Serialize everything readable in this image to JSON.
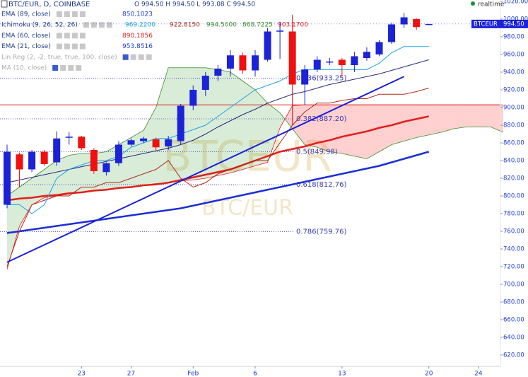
{
  "chart_data": {
    "type": "candlestick",
    "title": "BTC/EUR, D, COINBASE",
    "ohlc_header": "O 994.50 H 994.50 L 993.08 C 994.50",
    "realtime": "realtime",
    "watermark": [
      "BTCEUR",
      "BTC/EUR"
    ],
    "price_tag": {
      "symbol": "BTCEUR",
      "price": "994.50",
      "value": 994.5
    },
    "indicators": [
      {
        "name": "EMA (89, close)",
        "values": [
          "850.1023"
        ],
        "colors": [
          "#1f3cd6"
        ]
      },
      {
        "name": "Ichimoku (9, 26, 52, 26)",
        "values": [
          "969.2200",
          "922.8150",
          "994.5000",
          "868.7225",
          "903.1700"
        ],
        "colors": [
          "#1aa3e8",
          "#b22a1c",
          "#3a8f2a",
          "#3a8f2a",
          "#e0201c"
        ]
      },
      {
        "name": "EMA (60, close)",
        "values": [
          "890.1856"
        ],
        "colors": [
          "#e0201c"
        ]
      },
      {
        "name": "EMA (21, close)",
        "values": [
          "953.8516"
        ],
        "colors": [
          "#1f3cd6"
        ]
      },
      {
        "name": "Lin Reg (2, -2, true, true, 100, close)",
        "values": [],
        "colors": []
      },
      {
        "name": "MA (10, close)",
        "values": [],
        "colors": []
      }
    ],
    "categories": [
      null,
      null,
      null,
      null,
      null,
      null,
      "23",
      null,
      null,
      null,
      "27",
      null,
      null,
      null,
      null,
      "Feb",
      null,
      null,
      null,
      null,
      "6",
      null,
      null,
      null,
      null,
      null,
      null,
      "13",
      null,
      null,
      null,
      null,
      null,
      null,
      "20",
      null,
      null,
      null,
      "24",
      null,
      null
    ],
    "open": [
      790,
      847,
      830,
      850,
      838,
      866,
      867,
      852,
      827,
      837,
      858,
      862,
      864,
      856,
      862,
      902,
      920,
      936,
      944,
      959,
      942,
      954,
      986,
      986,
      926,
      943,
      952,
      954,
      948,
      956,
      960,
      974,
      994,
      1000,
      994.5,
      null,
      null,
      null,
      null,
      null,
      null
    ],
    "high": [
      858,
      849,
      852,
      852,
      873,
      872,
      868,
      854,
      838,
      862,
      865,
      867,
      866,
      868,
      904,
      925,
      940,
      948,
      965,
      962,
      965,
      990,
      997,
      1005,
      948,
      958,
      956,
      956,
      963,
      968,
      976,
      996,
      1007,
      1001,
      994.5,
      null,
      null,
      null,
      null,
      null,
      null
    ],
    "low": [
      786,
      810,
      827,
      834,
      834,
      858,
      852,
      825,
      823,
      834,
      856,
      860,
      851,
      852,
      858,
      897,
      913,
      930,
      935,
      938,
      935,
      952,
      955,
      880,
      903,
      940,
      948,
      935,
      940,
      953,
      958,
      972,
      990,
      988,
      993.08,
      null,
      null,
      null,
      null,
      null,
      null
    ],
    "close": [
      850,
      830,
      850,
      836,
      865,
      867,
      854,
      828,
      837,
      858,
      863,
      865,
      855,
      864,
      902,
      920,
      936,
      944,
      959,
      942,
      959,
      986,
      987,
      926,
      943,
      954,
      952,
      948,
      958,
      963,
      974,
      994,
      1002,
      991,
      994.5,
      null,
      null,
      null,
      null,
      null,
      null
    ],
    "up_color": "#1b22d8",
    "down_color": "#f01010",
    "overlays": [
      {
        "name": "EMA (89, close)",
        "color": "#1b2fd6",
        "width": 2.5,
        "values": [
          758,
          760,
          762,
          764,
          766,
          768,
          770,
          772,
          774,
          776,
          778,
          780,
          782,
          784,
          786,
          789,
          792,
          795,
          798,
          801,
          804,
          807,
          810,
          813,
          816,
          819,
          822,
          825,
          828,
          831,
          834,
          838,
          842,
          846,
          850,
          null,
          null,
          null,
          null,
          null,
          null
        ]
      },
      {
        "name": "EMA (60, close)",
        "color": "#e0201c",
        "width": 2.5,
        "values": [
          795,
          797,
          798,
          800,
          801,
          803,
          804,
          806,
          807,
          809,
          810,
          812,
          813,
          815,
          818,
          821,
          824,
          827,
          830,
          835,
          840,
          845,
          850,
          853,
          856,
          860,
          863,
          867,
          870,
          873,
          877,
          880,
          884,
          887,
          890,
          null,
          null,
          null,
          null,
          null,
          null
        ]
      },
      {
        "name": "EMA (21, close)",
        "color": "#2a2a7a",
        "width": 1,
        "values": [
          815,
          818,
          821,
          824,
          827,
          830,
          833,
          836,
          839,
          842,
          845,
          848,
          851,
          854,
          858,
          863,
          870,
          878,
          885,
          892,
          898,
          905,
          910,
          915,
          918,
          922,
          926,
          929,
          932,
          935,
          938,
          942,
          946,
          950,
          954,
          null,
          null,
          null,
          null,
          null,
          null
        ]
      },
      {
        "name": "Conversion",
        "color": "#1aa3e8",
        "width": 1,
        "values": [
          790,
          790,
          780,
          790,
          820,
          830,
          835,
          840,
          840,
          845,
          855,
          860,
          865,
          865,
          870,
          875,
          880,
          890,
          900,
          910,
          920,
          925,
          930,
          938,
          943,
          943,
          943,
          943,
          943,
          943,
          950,
          962,
          969,
          969,
          969,
          null,
          null,
          null,
          null,
          null,
          null
        ]
      },
      {
        "name": "Base",
        "color": "#b22a1c",
        "width": 1,
        "values": [
          720,
          760,
          790,
          795,
          800,
          800,
          810,
          810,
          815,
          815,
          820,
          825,
          830,
          840,
          820,
          810,
          815,
          825,
          830,
          835,
          840,
          840,
          860,
          880,
          895,
          905,
          905,
          908,
          910,
          910,
          915,
          915,
          915,
          918,
          922,
          null,
          null,
          null,
          null,
          null,
          null
        ]
      }
    ],
    "cloud": {
      "span_a": [
        800,
        810,
        820,
        830,
        840,
        846,
        848,
        848,
        850,
        858,
        866,
        874,
        900,
        945,
        945,
        945,
        945,
        943,
        940,
        930,
        920,
        905,
        894,
        876,
        858,
        855,
        850,
        848,
        845,
        842,
        850,
        858,
        862,
        866,
        869,
        872,
        876,
        878,
        878,
        878,
        872
      ],
      "span_b": [
        717,
        766,
        790,
        798,
        800,
        802,
        804,
        806,
        807,
        809,
        810,
        812,
        814,
        815,
        817,
        818,
        820,
        823,
        826,
        830,
        834,
        838,
        877,
        902,
        903,
        903,
        903,
        903,
        903,
        903,
        903,
        903,
        903,
        903,
        903,
        903,
        903,
        903,
        903,
        903,
        903
      ],
      "up_fill": "rgba(60,160,60,0.2)",
      "down_fill": "rgba(255,120,120,0.35)",
      "line_color": "#3a8f2a"
    },
    "trend_line": {
      "start": [
        0,
        725
      ],
      "end": [
        32,
        935
      ],
      "color": "#1b22d8"
    },
    "hline": {
      "value": 903,
      "color": "#e0201c"
    },
    "fib_levels": [
      {
        "value": 933.25,
        "label": "0.236(933.25)"
      },
      {
        "value": 887.2,
        "label": "0.382(887.20)"
      },
      {
        "value": 849.98,
        "label": "0.5(849.98)"
      },
      {
        "value": 812.76,
        "label": "0.618(812.76)"
      },
      {
        "value": 759.76,
        "label": "0.786(759.76)"
      }
    ],
    "fib_color": "#3a3ab0",
    "ylim": [
      605.6,
      1021.6
    ],
    "yticks": [
      {
        "value": 620,
        "label": "620.00"
      },
      {
        "value": 640,
        "label": "640.00"
      },
      {
        "value": 660,
        "label": "660.00"
      },
      {
        "value": 680,
        "label": "680.00"
      },
      {
        "value": 700,
        "label": "700.00"
      },
      {
        "value": 720,
        "label": "720.00"
      },
      {
        "value": 740,
        "label": "740.00"
      },
      {
        "value": 760,
        "label": "760.00"
      },
      {
        "value": 780,
        "label": "780.00"
      },
      {
        "value": 800,
        "label": "800.00"
      },
      {
        "value": 820,
        "label": "820.00"
      },
      {
        "value": 840,
        "label": "840.00"
      },
      {
        "value": 860,
        "label": "860.00"
      },
      {
        "value": 880,
        "label": "880.00"
      },
      {
        "value": 900,
        "label": "900.00"
      },
      {
        "value": 920,
        "label": "920.00"
      },
      {
        "value": 940,
        "label": "940.00"
      },
      {
        "value": 960,
        "label": "960.00"
      },
      {
        "value": 980,
        "label": "980.00"
      },
      {
        "value": 1000,
        "label": "1000.00"
      },
      {
        "value": 1020,
        "label": "1020.00"
      }
    ],
    "grid": false
  }
}
